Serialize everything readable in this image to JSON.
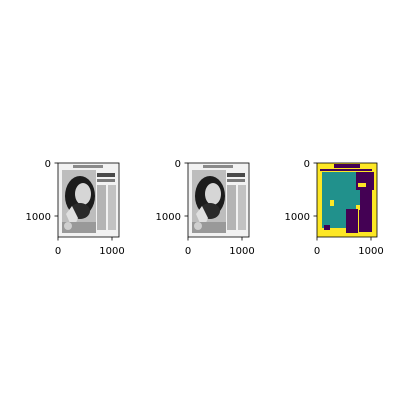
{
  "chart_data": [
    {
      "type": "image",
      "content": "grayscale magazine page: woman portrait with text columns",
      "xticks": [
        "0",
        "1000"
      ],
      "yticks": [
        "0",
        "1000"
      ],
      "xlim": [
        0,
        1130
      ],
      "ylim": [
        1330,
        0
      ],
      "grid": false
    },
    {
      "type": "image",
      "content": "grayscale magazine page: woman portrait with text columns",
      "xticks": [
        "0",
        "1000"
      ],
      "yticks": [
        "0",
        "1000"
      ],
      "xlim": [
        0,
        1130
      ],
      "ylim": [
        1330,
        0
      ],
      "grid": false
    },
    {
      "type": "image",
      "content": "segmentation mask (viridis colormap)",
      "colormap": "viridis",
      "colors": [
        "#fde725",
        "#21918c",
        "#440154"
      ],
      "xticks": [
        "0",
        "1000"
      ],
      "yticks": [
        "0",
        "1000"
      ],
      "xlim": [
        0,
        1130
      ],
      "ylim": [
        1330,
        0
      ],
      "grid": false
    }
  ]
}
